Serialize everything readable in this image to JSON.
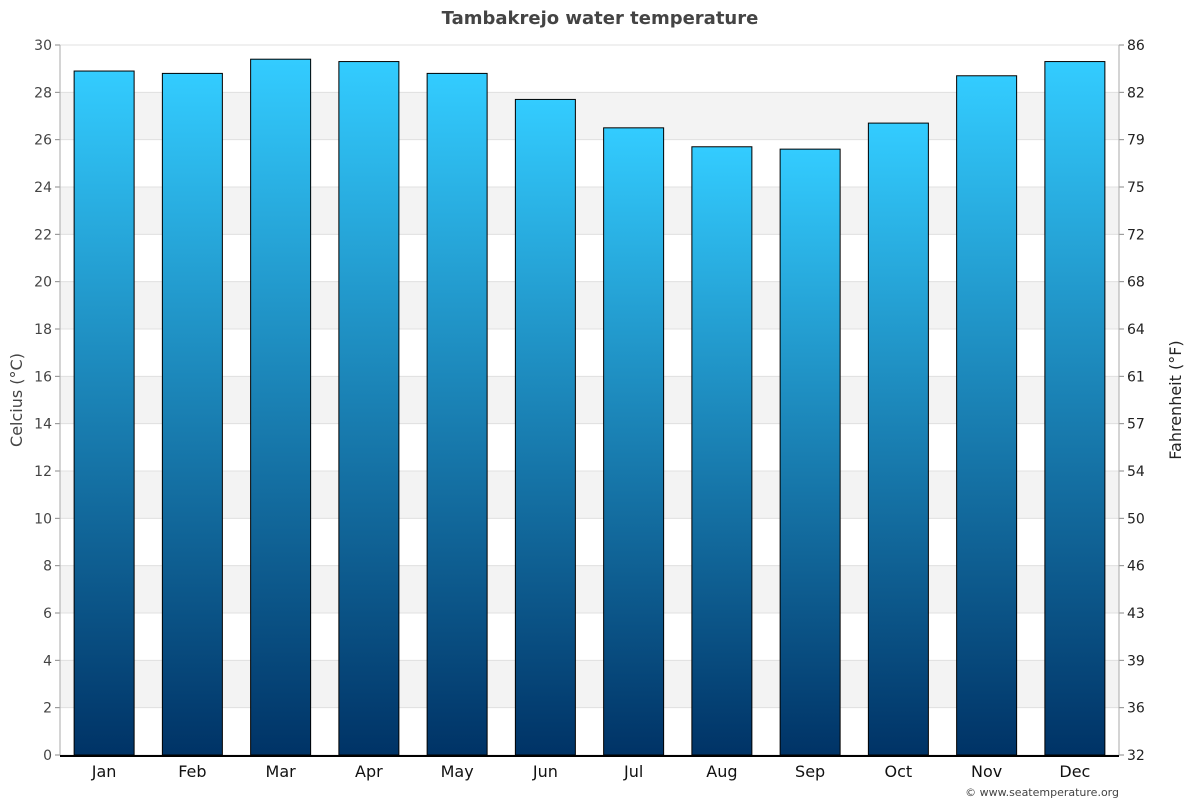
{
  "chart_data": {
    "type": "bar",
    "title": "Tambakrejo water temperature",
    "ylabel": "Celcius (°C)",
    "ylabel_right": "Fahrenheit (°F)",
    "categories": [
      "Jan",
      "Feb",
      "Mar",
      "Apr",
      "May",
      "Jun",
      "Jul",
      "Aug",
      "Sep",
      "Oct",
      "Nov",
      "Dec"
    ],
    "values": [
      28.9,
      28.8,
      29.4,
      29.3,
      28.8,
      27.7,
      26.5,
      25.7,
      25.6,
      26.7,
      28.7,
      29.3
    ],
    "ylim": [
      0,
      30
    ],
    "yticks": [
      0,
      2,
      4,
      6,
      8,
      10,
      12,
      14,
      16,
      18,
      20,
      22,
      24,
      26,
      28,
      30
    ],
    "yticks_right": [
      32,
      36,
      39,
      43,
      46,
      50,
      54,
      57,
      61,
      64,
      68,
      72,
      75,
      79,
      82,
      86
    ],
    "grid": true,
    "colors": {
      "bar_top": "#33ccff",
      "bar_bottom": "#003366",
      "band": "#f3f3f3",
      "title": "#444444"
    },
    "credit": "© www.seatemperature.org"
  }
}
